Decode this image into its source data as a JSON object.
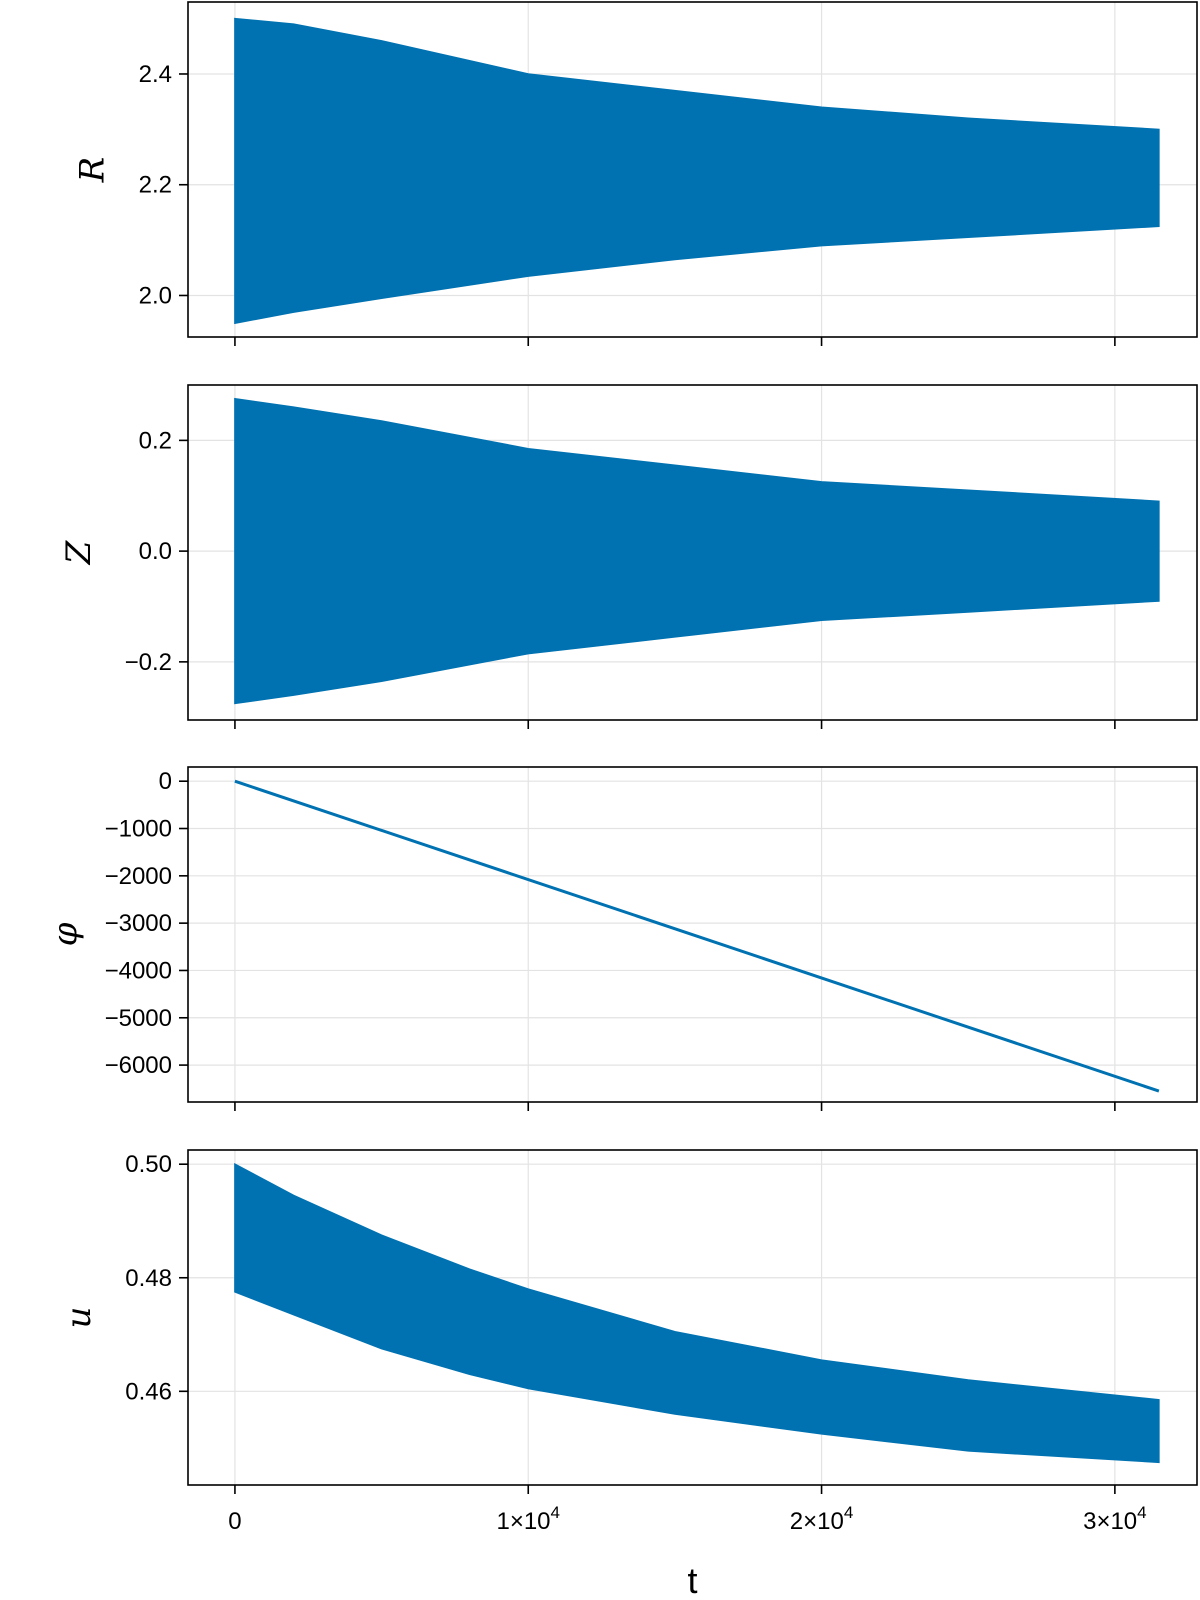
{
  "chart_data": {
    "type": "line",
    "xlabel": "t",
    "xlim": [
      -1600,
      32800
    ],
    "xticks": [
      {
        "value": 0,
        "label": "0"
      },
      {
        "value": 10000,
        "label": "1×10",
        "sup": "4"
      },
      {
        "value": 20000,
        "label": "2×10",
        "sup": "4"
      },
      {
        "value": 30000,
        "label": "3×10",
        "sup": "4"
      }
    ],
    "color": "#0072b2",
    "panels": [
      {
        "id": "R",
        "ylabel": "R",
        "kind": "band",
        "ylim": [
          1.925,
          2.53
        ],
        "yticks": [
          {
            "value": 2.0,
            "label": "2.0"
          },
          {
            "value": 2.2,
            "label": "2.2"
          },
          {
            "value": 2.4,
            "label": "2.4"
          }
        ],
        "t": [
          0,
          2000,
          5000,
          10000,
          15000,
          20000,
          25000,
          31500
        ],
        "upper": [
          2.5,
          2.49,
          2.46,
          2.4,
          2.37,
          2.34,
          2.32,
          2.3
        ],
        "lower": [
          1.95,
          1.97,
          1.995,
          2.035,
          2.065,
          2.09,
          2.105,
          2.125
        ]
      },
      {
        "id": "Z",
        "ylabel": "Z",
        "kind": "band",
        "ylim": [
          -0.305,
          0.3
        ],
        "yticks": [
          {
            "value": -0.2,
            "label": "−0.2"
          },
          {
            "value": 0.0,
            "label": "0.0"
          },
          {
            "value": 0.2,
            "label": "0.2"
          }
        ],
        "t": [
          0,
          2000,
          5000,
          10000,
          15000,
          20000,
          25000,
          31500
        ],
        "upper": [
          0.275,
          0.26,
          0.235,
          0.185,
          0.155,
          0.125,
          0.11,
          0.09
        ],
        "lower": [
          -0.275,
          -0.26,
          -0.235,
          -0.185,
          -0.155,
          -0.125,
          -0.11,
          -0.09
        ]
      },
      {
        "id": "phi",
        "ylabel": "φ",
        "kind": "line",
        "ylim": [
          -6780,
          300
        ],
        "yticks": [
          {
            "value": 0,
            "label": "0"
          },
          {
            "value": -1000,
            "label": "−1000"
          },
          {
            "value": -2000,
            "label": "−2000"
          },
          {
            "value": -3000,
            "label": "−3000"
          },
          {
            "value": -4000,
            "label": "−4000"
          },
          {
            "value": -5000,
            "label": "−5000"
          },
          {
            "value": -6000,
            "label": "−6000"
          }
        ],
        "t": [
          0,
          31500
        ],
        "values": [
          0,
          -6550
        ]
      },
      {
        "id": "u",
        "ylabel": "u",
        "kind": "band",
        "ylim": [
          0.4435,
          0.5025
        ],
        "yticks": [
          {
            "value": 0.46,
            "label": "0.46"
          },
          {
            "value": 0.48,
            "label": "0.48"
          },
          {
            "value": 0.5,
            "label": "0.50"
          }
        ],
        "t": [
          0,
          2000,
          5000,
          8000,
          10000,
          15000,
          20000,
          25000,
          31500
        ],
        "upper": [
          0.5,
          0.4945,
          0.4875,
          0.4815,
          0.478,
          0.4705,
          0.4655,
          0.462,
          0.4585
        ],
        "lower": [
          0.4775,
          0.4735,
          0.4675,
          0.463,
          0.4605,
          0.456,
          0.4525,
          0.4495,
          0.4475
        ]
      }
    ]
  }
}
